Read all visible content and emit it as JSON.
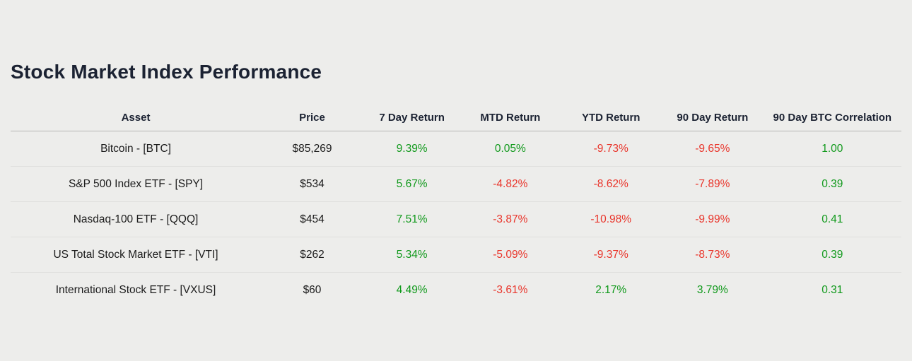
{
  "page": {
    "title": "Stock Market Index Performance",
    "background_color": "#ededeb",
    "positive_color": "#10991b",
    "negative_color": "#e9352b",
    "heading_color": "#1b2232"
  },
  "chart_data": {
    "type": "table",
    "title": "Stock Market Index Performance",
    "columns": [
      "Asset",
      "Price",
      "7 Day Return",
      "MTD Return",
      "YTD Return",
      "90 Day Return",
      "90 Day BTC Correlation"
    ],
    "rows": [
      {
        "asset": "Bitcoin - [BTC]",
        "price": "$85,269",
        "seven_day_return": "9.39%",
        "mtd_return": "0.05%",
        "ytd_return": "-9.73%",
        "ninety_day_return": "-9.65%",
        "btc_correlation": "1.00"
      },
      {
        "asset": "S&P 500 Index ETF - [SPY]",
        "price": "$534",
        "seven_day_return": "5.67%",
        "mtd_return": "-4.82%",
        "ytd_return": "-8.62%",
        "ninety_day_return": "-7.89%",
        "btc_correlation": "0.39"
      },
      {
        "asset": "Nasdaq-100 ETF - [QQQ]",
        "price": "$454",
        "seven_day_return": "7.51%",
        "mtd_return": "-3.87%",
        "ytd_return": "-10.98%",
        "ninety_day_return": "-9.99%",
        "btc_correlation": "0.41"
      },
      {
        "asset": "US Total Stock Market ETF - [VTI]",
        "price": "$262",
        "seven_day_return": "5.34%",
        "mtd_return": "-5.09%",
        "ytd_return": "-9.37%",
        "ninety_day_return": "-8.73%",
        "btc_correlation": "0.39"
      },
      {
        "asset": "International Stock ETF - [VXUS]",
        "price": "$60",
        "seven_day_return": "4.49%",
        "mtd_return": "-3.61%",
        "ytd_return": "2.17%",
        "ninety_day_return": "3.79%",
        "btc_correlation": "0.31"
      }
    ]
  }
}
